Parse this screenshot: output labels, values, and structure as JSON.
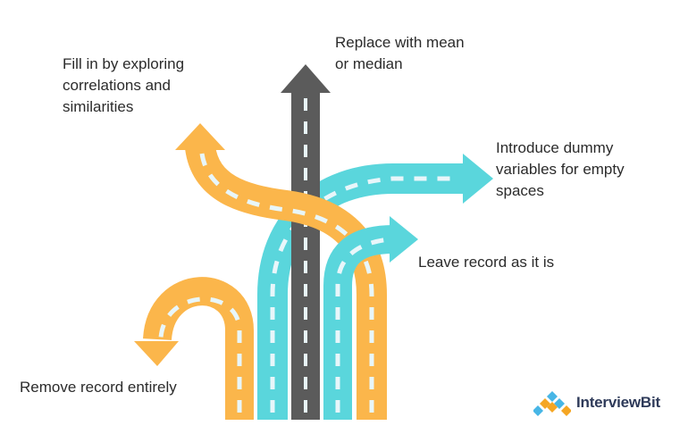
{
  "colors": {
    "orange": "#fbb64b",
    "cyan": "#5ad6dc",
    "gray": "#5b5b5b",
    "dash": "#e8f6fa",
    "text": "#2b2b2b",
    "brand_dark": "#2e3a59",
    "brand_light": "#47b6e6",
    "brand_orange": "#f5a623"
  },
  "labels": {
    "fill_in": [
      "Fill in by exploring",
      "correlations and",
      "similarities"
    ],
    "replace": [
      "Replace with mean",
      "or median"
    ],
    "dummy": [
      "Introduce dummy",
      "variables for empty",
      "spaces"
    ],
    "leave": [
      "Leave record as it is"
    ],
    "remove": [
      "Remove record entirely"
    ]
  },
  "brand": {
    "name": "InterviewBit",
    "logo_icon": "interviewbit-logo-icon"
  }
}
